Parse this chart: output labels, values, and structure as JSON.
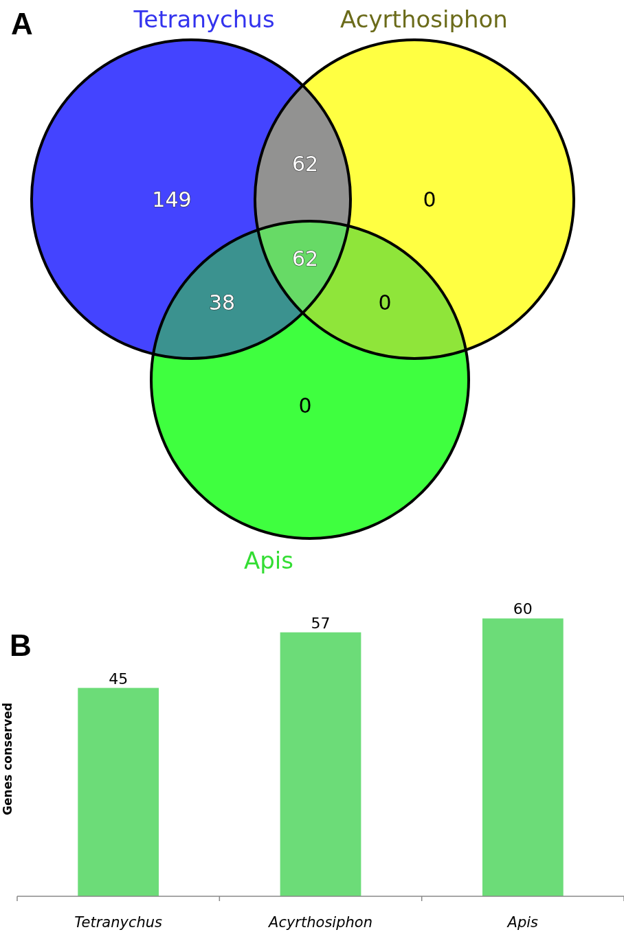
{
  "chart_data": [
    {
      "type": "other",
      "title": "A",
      "series": [
        {
          "name": "Tetranychus",
          "color": "#3333ee"
        },
        {
          "name": "Acyrthosiphon",
          "color": "#6b6b1a"
        },
        {
          "name": "Apis",
          "color": "#33dd33"
        }
      ],
      "annotations": [
        "149",
        "0",
        "0",
        "62",
        "38",
        "0",
        "62"
      ]
    },
    {
      "type": "bar",
      "title": "B",
      "ylabel": "Genes conserved",
      "categories": [
        "Tetranychus",
        "Acyrthosiphon",
        "Apis"
      ],
      "values": [
        45,
        57,
        60
      ],
      "color": "#6cdc78",
      "data_labels": true
    }
  ]
}
